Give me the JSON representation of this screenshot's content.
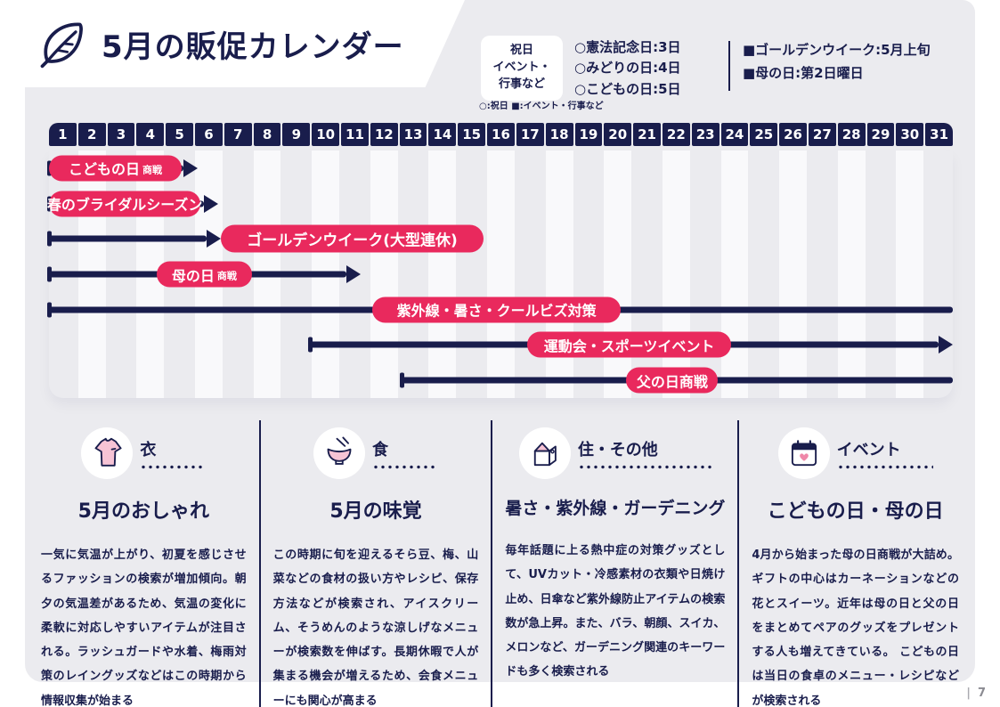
{
  "header": {
    "title": "5月の販促カレンダー",
    "holiday_box_lines": [
      "祝日",
      "イベント・",
      "行事など"
    ],
    "holidays": [
      "○憲法記念日:3日",
      "○みどりの日:4日",
      "○こどもの日:5日"
    ],
    "events": [
      "■ゴールデンウイーク:5月上旬",
      "■母の日:第2日曜日"
    ],
    "legend": "○:祝日 ■:イベント・行事など"
  },
  "colors": {
    "navy": "#191d4c",
    "red": "#e9295d",
    "pink": "#f6c3d5",
    "panel_gray": "#ebebef",
    "stripe_white": "#f9f9fb"
  },
  "calendar": {
    "days": [
      "1",
      "2",
      "3",
      "4",
      "5",
      "6",
      "7",
      "8",
      "9",
      "10",
      "11",
      "12",
      "13",
      "14",
      "15",
      "16",
      "17",
      "18",
      "19",
      "20",
      "21",
      "22",
      "23",
      "24",
      "25",
      "26",
      "27",
      "28",
      "29",
      "30",
      "31"
    ],
    "rows": [
      {
        "label": "こどもの日",
        "label_small": "商戦",
        "line_start": 0,
        "line_end": 4.6,
        "end_arrow": true,
        "pill_start": 0,
        "pill_end": 4.55
      },
      {
        "label": "春のブライダルシーズン",
        "line_start": 0,
        "line_end": 5.3,
        "end_arrow": true,
        "pill_start": 0,
        "pill_end": 5.2
      },
      {
        "label": "ゴールデンウイーク(大型連休)",
        "line_start": 0,
        "line_end": 5.4,
        "end_arrow": true,
        "pill_start": 5.9,
        "pill_end": 14.9,
        "pill_size": "lg"
      },
      {
        "label": "母の日",
        "label_small": "商戦",
        "line_start": 0,
        "line_end": 10.2,
        "end_arrow": true,
        "pill_start": 3.7,
        "pill_end": 6.95
      },
      {
        "label": "紫外線・暑さ・クールビズ対策",
        "line_start": 0,
        "line_end": 31,
        "end_arrow": false,
        "pill_start": 11.1,
        "pill_end": 19.6
      },
      {
        "label": "運動会・スポーツイベント",
        "line_start": 8.95,
        "line_end": 30.5,
        "end_arrow": true,
        "pill_start": 16.4,
        "pill_end": 23.4
      },
      {
        "label": "父の日商戦",
        "line_start": 12.1,
        "line_end": 31,
        "end_arrow": false,
        "pill_start": 19.8,
        "pill_end": 22.95
      }
    ]
  },
  "categories": [
    {
      "icon": "tshirt-icon",
      "label": "衣",
      "heading": "5月のおしゃれ",
      "body": "一気に気温が上がり、初夏を感じさせるファッションの検索が増加傾向。朝夕の気温差があるため、気温の変化に柔軟に対応しやすいアイテムが注目される。ラッシュガードや水着、梅雨対策のレイングッズなどはこの時期から情報収集が始まる"
    },
    {
      "icon": "bowl-icon",
      "label": "食",
      "heading": "5月の味覚",
      "body": "この時期に旬を迎えるそら豆、梅、山菜などの食材の扱い方やレシピ、保存方法などが検索され、アイスクリーム、そうめんのような涼しげなメニューが検索数を伸ばす。長期休暇で人が集まる機会が増えるため、会食メニューにも関心が高まる"
    },
    {
      "icon": "house-icon",
      "label": "住・その他",
      "heading": "暑さ・紫外線・ガーデニング",
      "body": "毎年話題に上る熱中症の対策グッズとして、UVカット・冷感素材の衣類や日焼け止め、日傘など紫外線防止アイテムの検索数が急上昇。また、バラ、朝顔、スイカ、メロンなど、ガーデニング関連のキーワードも多く検索される"
    },
    {
      "icon": "calendar-icon",
      "label": "イベント",
      "heading": "こどもの日・母の日",
      "body": "4月から始まった母の日商戦が大詰め。ギフトの中心はカーネーションなどの花とスイーツ。近年は母の日と父の日をまとめてペアのグッズをプレゼントする人も増えてきている。 こどもの日は当日の食卓のメニュー・レシピなどが検索される"
    }
  ],
  "footer": {
    "page_bar": "|",
    "page_number": "7"
  }
}
